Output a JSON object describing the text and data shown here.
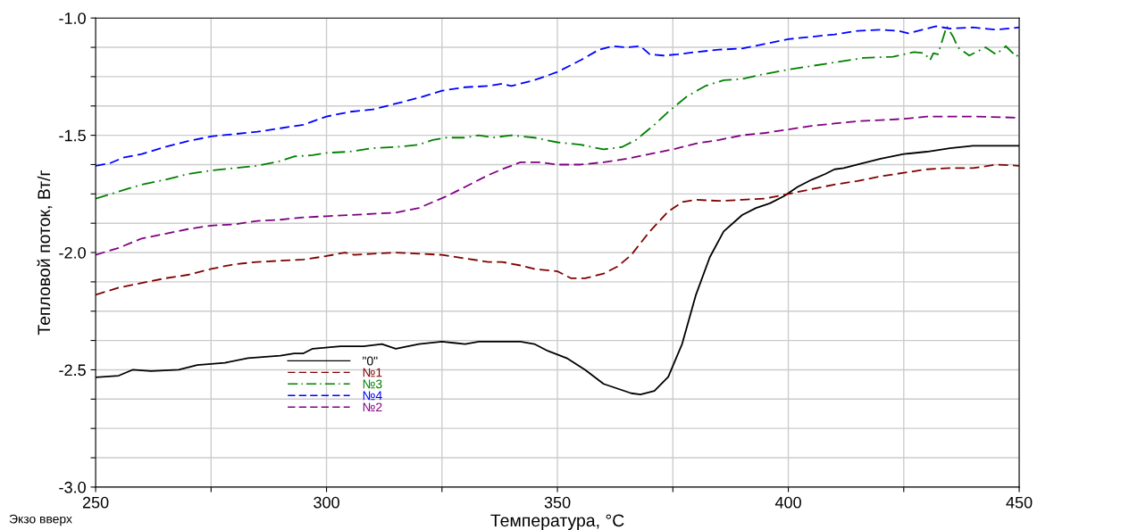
{
  "chart_data": {
    "type": "line",
    "xlabel": "Температура, °C",
    "ylabel": "Тепловой поток, Вт/г",
    "annotations": [
      "Экзо вверх"
    ],
    "xlim": [
      250,
      450
    ],
    "ylim": [
      -3.0,
      -1.0
    ],
    "xticks": [
      250,
      {
        "value": 275,
        "label": null
      },
      300,
      {
        "value": 325,
        "label": null
      },
      350,
      {
        "value": 375,
        "label": null
      },
      400,
      {
        "value": 425,
        "label": null
      },
      450
    ],
    "yticks": [
      {
        "value": -3.0,
        "label": "-3.0"
      },
      {
        "value": -2.875,
        "label": null
      },
      {
        "value": -2.75,
        "label": null
      },
      {
        "value": -2.625,
        "label": null
      },
      {
        "value": -2.5,
        "label": "-2.5"
      },
      {
        "value": -2.375,
        "label": null
      },
      {
        "value": -2.25,
        "label": null
      },
      {
        "value": -2.125,
        "label": null
      },
      {
        "value": -2.0,
        "label": "-2.0"
      },
      {
        "value": -1.875,
        "label": null
      },
      {
        "value": -1.75,
        "label": null
      },
      {
        "value": -1.625,
        "label": null
      },
      {
        "value": -1.5,
        "label": "-1.5"
      },
      {
        "value": -1.375,
        "label": null
      },
      {
        "value": -1.25,
        "label": null
      },
      {
        "value": -1.125,
        "label": null
      },
      {
        "value": -1.0,
        "label": "-1.0"
      }
    ],
    "grid": true,
    "legend": "bottom left",
    "marker": "none",
    "series": [
      {
        "name": "\"0\"",
        "color": "#000000",
        "line_style": "solid",
        "x": [
          250,
          255,
          258,
          262,
          268,
          272,
          278,
          283,
          290,
          293,
          295,
          297,
          303,
          308,
          312,
          315,
          320,
          325,
          330,
          333,
          338,
          342,
          345,
          348,
          352,
          356,
          360,
          363,
          366,
          368,
          371,
          374,
          377,
          380,
          383,
          386,
          390,
          393,
          396,
          399,
          402,
          405,
          408,
          410,
          412,
          415,
          420,
          425,
          430,
          435,
          440,
          445,
          450
        ],
        "values": [
          -2.532,
          -2.525,
          -2.5,
          -2.505,
          -2.5,
          -2.48,
          -2.47,
          -2.45,
          -2.44,
          -2.43,
          -2.43,
          -2.41,
          -2.4,
          -2.4,
          -2.39,
          -2.41,
          -2.39,
          -2.38,
          -2.39,
          -2.38,
          -2.38,
          -2.38,
          -2.39,
          -2.42,
          -2.45,
          -2.5,
          -2.56,
          -2.58,
          -2.6,
          -2.605,
          -2.59,
          -2.53,
          -2.39,
          -2.18,
          -2.02,
          -1.91,
          -1.84,
          -1.81,
          -1.79,
          -1.76,
          -1.72,
          -1.69,
          -1.665,
          -1.645,
          -1.64,
          -1.625,
          -1.6,
          -1.58,
          -1.57,
          -1.555,
          -1.545,
          -1.545,
          -1.545
        ]
      },
      {
        "name": "№1",
        "color": "#800000",
        "line_style": "dashed",
        "x": [
          250,
          255,
          260,
          265,
          270,
          275,
          280,
          285,
          290,
          295,
          300,
          304,
          306,
          310,
          315,
          320,
          325,
          330,
          335,
          338,
          342,
          345,
          350,
          353,
          356,
          360,
          363,
          366,
          370,
          374,
          377,
          380,
          385,
          390,
          395,
          400,
          405,
          410,
          415,
          420,
          425,
          430,
          435,
          440,
          445,
          450
        ],
        "values": [
          -2.18,
          -2.15,
          -2.13,
          -2.11,
          -2.095,
          -2.07,
          -2.05,
          -2.04,
          -2.035,
          -2.03,
          -2.015,
          -2.0,
          -2.01,
          -2.005,
          -2.0,
          -2.005,
          -2.01,
          -2.025,
          -2.04,
          -2.04,
          -2.055,
          -2.07,
          -2.08,
          -2.11,
          -2.11,
          -2.09,
          -2.06,
          -2.01,
          -1.91,
          -1.825,
          -1.785,
          -1.775,
          -1.78,
          -1.775,
          -1.77,
          -1.75,
          -1.73,
          -1.71,
          -1.695,
          -1.675,
          -1.66,
          -1.645,
          -1.64,
          -1.64,
          -1.625,
          -1.63
        ]
      },
      {
        "name": "№3",
        "color": "#008000",
        "line_style": "dashdot",
        "x": [
          250,
          255,
          260,
          265,
          270,
          275,
          280,
          285,
          290,
          293,
          297,
          300,
          305,
          310,
          315,
          320,
          323,
          326,
          330,
          333,
          336,
          340,
          345,
          350,
          355,
          360,
          364,
          367,
          371,
          374,
          378,
          382,
          386,
          390,
          393.7,
          400,
          409.8,
          416.3,
          422.7,
          427.2,
          429.5,
          430.7,
          431.4,
          432.4,
          434.3,
          435.7,
          436.7,
          439.2,
          442.7,
          445,
          447.1,
          449.4,
          450
        ],
        "values": [
          -1.77,
          -1.74,
          -1.71,
          -1.69,
          -1.665,
          -1.65,
          -1.64,
          -1.63,
          -1.61,
          -1.59,
          -1.585,
          -1.575,
          -1.57,
          -1.555,
          -1.55,
          -1.54,
          -1.52,
          -1.51,
          -1.51,
          -1.5,
          -1.51,
          -1.5,
          -1.51,
          -1.53,
          -1.54,
          -1.56,
          -1.55,
          -1.52,
          -1.455,
          -1.4,
          -1.335,
          -1.29,
          -1.265,
          -1.26,
          -1.243,
          -1.22,
          -1.19,
          -1.17,
          -1.165,
          -1.145,
          -1.15,
          -1.18,
          -1.15,
          -1.155,
          -1.035,
          -1.08,
          -1.125,
          -1.16,
          -1.125,
          -1.155,
          -1.12,
          -1.165,
          -1.15
        ]
      },
      {
        "name": "№4",
        "color": "#0000ff",
        "line_style": "dashed",
        "x": [
          250,
          253,
          256,
          260,
          265,
          270,
          275,
          280,
          285,
          290,
          295,
          300,
          305,
          310,
          315,
          320,
          325,
          330,
          335,
          338,
          340,
          345,
          350,
          355,
          359,
          362,
          365,
          368,
          370,
          373,
          376,
          380,
          385,
          390,
          395,
          400,
          405,
          410,
          415,
          420,
          424,
          426,
          430,
          432,
          435,
          440,
          445,
          450
        ],
        "values": [
          -1.63,
          -1.62,
          -1.595,
          -1.58,
          -1.55,
          -1.525,
          -1.505,
          -1.495,
          -1.485,
          -1.47,
          -1.455,
          -1.42,
          -1.4,
          -1.39,
          -1.365,
          -1.34,
          -1.31,
          -1.295,
          -1.29,
          -1.28,
          -1.29,
          -1.265,
          -1.23,
          -1.18,
          -1.135,
          -1.12,
          -1.125,
          -1.12,
          -1.155,
          -1.16,
          -1.155,
          -1.145,
          -1.135,
          -1.13,
          -1.11,
          -1.09,
          -1.08,
          -1.07,
          -1.055,
          -1.05,
          -1.055,
          -1.065,
          -1.045,
          -1.035,
          -1.045,
          -1.04,
          -1.05,
          -1.04
        ]
      },
      {
        "name": "№2",
        "color": "#800080",
        "line_style": "dashed",
        "x": [
          250,
          255,
          260,
          265,
          270,
          275,
          280,
          285,
          290,
          295,
          300,
          305,
          310,
          315,
          320,
          323,
          326,
          330,
          335,
          338,
          342,
          346,
          350,
          355,
          360,
          365,
          370,
          375,
          380,
          385,
          390,
          395,
          400,
          405,
          410,
          415,
          420,
          425,
          430,
          440,
          450
        ],
        "values": [
          -2.01,
          -1.98,
          -1.94,
          -1.92,
          -1.9,
          -1.885,
          -1.88,
          -1.865,
          -1.86,
          -1.85,
          -1.845,
          -1.84,
          -1.835,
          -1.83,
          -1.81,
          -1.785,
          -1.76,
          -1.72,
          -1.67,
          -1.645,
          -1.615,
          -1.615,
          -1.625,
          -1.625,
          -1.615,
          -1.6,
          -1.58,
          -1.56,
          -1.535,
          -1.52,
          -1.5,
          -1.49,
          -1.475,
          -1.46,
          -1.45,
          -1.44,
          -1.435,
          -1.43,
          -1.42,
          -1.42,
          -1.425
        ]
      }
    ]
  }
}
